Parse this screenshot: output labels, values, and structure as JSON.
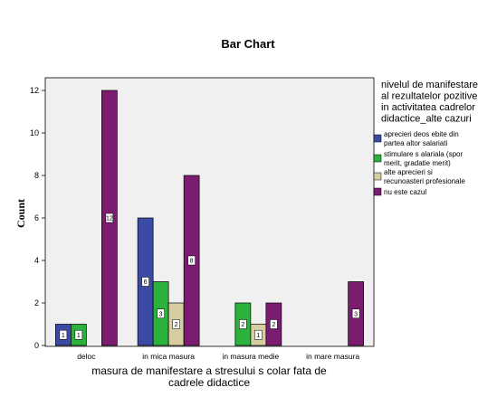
{
  "chart_data": {
    "type": "bar",
    "title": "Bar Chart",
    "xlabel": "masura de manifestare a stresului s colar fata de cadrele didactice",
    "xlabel_lines": [
      "masura de manifestare a stresului s colar fata de",
      "cadrele didactice"
    ],
    "ylabel": "Count",
    "ylim": [
      0,
      12
    ],
    "yticks": [
      0,
      2,
      4,
      6,
      8,
      10,
      12
    ],
    "categories": [
      "deloc",
      "in mica masura",
      "in masura medie",
      "in mare masura"
    ],
    "legend_title": "nivelul de manifestare al rezultatelor pozitive in activitatea cadrelor didactice_alte cazuri",
    "legend_title_lines": [
      "nivelul de manifestare",
      "al rezultatelor pozitive",
      "in activitatea cadrelor",
      "didactice_alte cazuri"
    ],
    "legend_position": "right",
    "grid": false,
    "series": [
      {
        "name": "aprecieri deosebite din partea altor salariati",
        "name_lines": [
          "aprecieri deos ebite din",
          "partea altor salariati"
        ],
        "color": "#3b4aa5",
        "values": [
          1,
          6,
          null,
          null
        ]
      },
      {
        "name": "stimulare salariala (spor merit, gradatie merit)",
        "name_lines": [
          "stimulare s alariala (spor",
          "merit, gradatie merit)"
        ],
        "color": "#2db13d",
        "values": [
          1,
          3,
          2,
          null
        ]
      },
      {
        "name": "alte aprecieri si recunoasteri profesionale",
        "name_lines": [
          "alte aprecieri si",
          "recunoasteri profesionale"
        ],
        "color": "#d6cda0",
        "values": [
          null,
          2,
          1,
          null
        ]
      },
      {
        "name": "nu este cazul",
        "name_lines": [
          "nu este cazul"
        ],
        "color": "#7b1c70",
        "values": [
          12,
          8,
          2,
          3
        ]
      }
    ]
  }
}
